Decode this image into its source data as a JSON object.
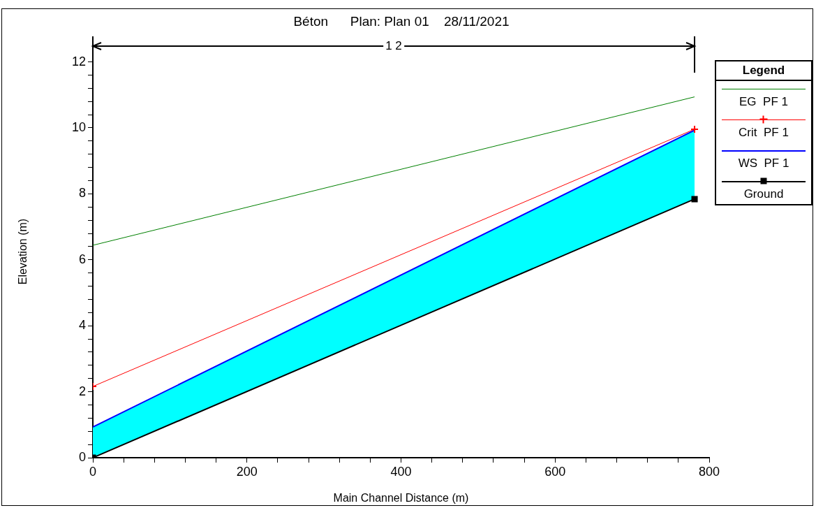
{
  "chart_data": {
    "type": "line",
    "title": "Béton      Plan: Plan 01    28/11/2021",
    "xlabel": "Main Channel Distance (m)",
    "ylabel": "Elevation (m)",
    "legend_title": "Legend",
    "legend": "right",
    "grid": false,
    "annotations": [
      "1 2"
    ],
    "x": [
      0,
      781
    ],
    "xlim": [
      0,
      800
    ],
    "ylim": [
      0,
      12.5
    ],
    "xticks": [
      0,
      {
        "value": 40,
        "label": null
      },
      {
        "value": 80,
        "label": null
      },
      {
        "value": 120,
        "label": null
      },
      {
        "value": 160,
        "label": null
      },
      200,
      {
        "value": 240,
        "label": null
      },
      {
        "value": 280,
        "label": null
      },
      {
        "value": 320,
        "label": null
      },
      {
        "value": 360,
        "label": null
      },
      400,
      {
        "value": 440,
        "label": null
      },
      {
        "value": 480,
        "label": null
      },
      {
        "value": 520,
        "label": null
      },
      {
        "value": 560,
        "label": null
      },
      600,
      {
        "value": 640,
        "label": null
      },
      {
        "value": 680,
        "label": null
      },
      {
        "value": 720,
        "label": null
      },
      {
        "value": 760,
        "label": null
      },
      800
    ],
    "yticks": [
      0,
      {
        "value": 0.4,
        "label": null
      },
      {
        "value": 0.8,
        "label": null
      },
      {
        "value": 1.2,
        "label": null
      },
      {
        "value": 1.6,
        "label": null
      },
      2,
      {
        "value": 2.4,
        "label": null
      },
      {
        "value": 2.8,
        "label": null
      },
      {
        "value": 3.2,
        "label": null
      },
      {
        "value": 3.6,
        "label": null
      },
      4,
      {
        "value": 4.4,
        "label": null
      },
      {
        "value": 4.8,
        "label": null
      },
      {
        "value": 5.2,
        "label": null
      },
      {
        "value": 5.6,
        "label": null
      },
      6,
      {
        "value": 6.4,
        "label": null
      },
      {
        "value": 6.8,
        "label": null
      },
      {
        "value": 7.2,
        "label": null
      },
      {
        "value": 7.6,
        "label": null
      },
      8,
      {
        "value": 8.4,
        "label": null
      },
      {
        "value": 8.8,
        "label": null
      },
      {
        "value": 9.2,
        "label": null
      },
      {
        "value": 9.6,
        "label": null
      },
      10,
      {
        "value": 10.4,
        "label": null
      },
      {
        "value": 10.8,
        "label": null
      },
      {
        "value": 11.2,
        "label": null
      },
      {
        "value": 11.6,
        "label": null
      },
      12
    ],
    "series": [
      {
        "name": "EG  PF 1",
        "type": "line",
        "color": "#008000",
        "marker": "none",
        "values": [
          6.44,
          10.94
        ]
      },
      {
        "name": "Crit  PF 1",
        "type": "line",
        "color": "#ff0000",
        "marker": "cross",
        "values": [
          2.16,
          9.96
        ]
      },
      {
        "name": "WS  PF 1",
        "type": "area",
        "color": "#0000ff",
        "marker": "none",
        "values": [
          0.93,
          9.93
        ]
      },
      {
        "name": "Ground",
        "type": "line",
        "color": "#000000",
        "marker": "square",
        "values": [
          0,
          7.84
        ]
      }
    ]
  }
}
